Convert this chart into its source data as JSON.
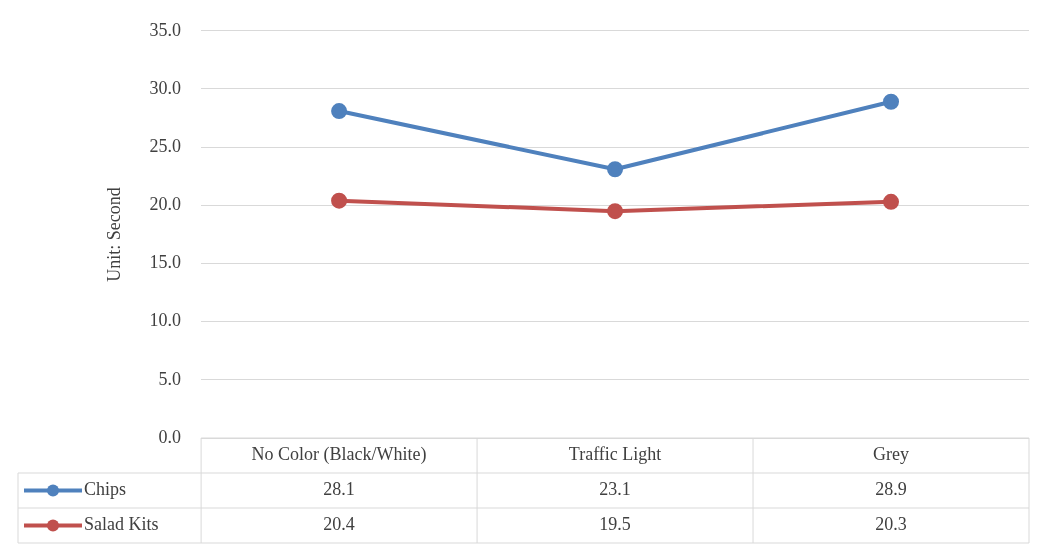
{
  "chart_data": {
    "type": "line",
    "ylabel": "Unit: Second",
    "categories": [
      "No Color (Black/White)",
      "Traffic Light",
      "Grey"
    ],
    "series": [
      {
        "name": "Chips",
        "color": "#4f81bd",
        "values": [
          28.1,
          23.1,
          28.9
        ]
      },
      {
        "name": "Salad Kits",
        "color": "#c0504d",
        "values": [
          20.4,
          19.5,
          20.3
        ]
      }
    ],
    "ylim": [
      0,
      35
    ],
    "yticks": [
      {
        "value": 0,
        "label": "0.0"
      },
      {
        "value": 5,
        "label": "5.0"
      },
      {
        "value": 10,
        "label": "10.0"
      },
      {
        "value": 15,
        "label": "15.0"
      },
      {
        "value": 20,
        "label": "20.0"
      },
      {
        "value": 25,
        "label": "25.0"
      },
      {
        "value": 30,
        "label": "30.0"
      },
      {
        "value": 35,
        "label": "35.0"
      }
    ],
    "grid": "y",
    "marker": "circle",
    "line_style": "solid",
    "legend": "bottom",
    "data_labels": true
  }
}
